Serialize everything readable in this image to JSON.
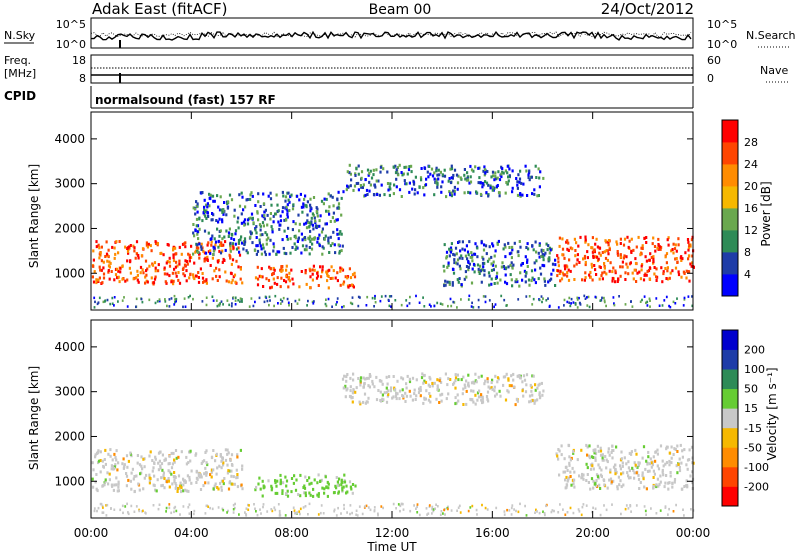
{
  "header": {
    "station": "Adak East (fitACF)",
    "beam": "Beam 00",
    "date": "24/Oct/2012"
  },
  "top_panels": {
    "nsky_label": "N.Sky",
    "nsearch_label": "N.Search",
    "freq_label_1": "Freq.",
    "freq_label_2": "[MHz]",
    "nave_label": "Nave",
    "cpid_label": "CPID",
    "cpid_text": "normalsound (fast) 157 RF",
    "noise_top_left": "10^5",
    "noise_bottom_left": "10^0",
    "noise_top_right": "10^5",
    "noise_bottom_right": "10^0",
    "freq_top": "18",
    "freq_bottom": "8",
    "nave_top": "60",
    "nave_bottom": "0"
  },
  "colorbars": {
    "power": {
      "label": "Power [dB]",
      "ticks": [
        "4",
        "8",
        "12",
        "16",
        "20",
        "24",
        "28"
      ],
      "colors": [
        "#0000ff",
        "#1e3ca8",
        "#2e8b57",
        "#6aa84f",
        "#f5b800",
        "#ff8c00",
        "#ff4500",
        "#ff0000"
      ]
    },
    "velocity": {
      "label": "Velocity [m s⁻¹]",
      "ticks": [
        "-200",
        "-100",
        "-50",
        "-15",
        "15",
        "50",
        "100",
        "200"
      ],
      "colors": [
        "#ff0000",
        "#ff4500",
        "#ff8c00",
        "#f5b800",
        "#c8c8c8",
        "#66cc33",
        "#2e8b57",
        "#1e3ca8",
        "#0000cd"
      ]
    }
  },
  "x_axis": {
    "label": "Time UT",
    "ticks": [
      "00:00",
      "04:00",
      "08:00",
      "12:00",
      "16:00",
      "20:00",
      "00:00"
    ]
  },
  "chart_data": [
    {
      "type": "heatmap",
      "name": "power",
      "ylabel": "Slant Range [km]",
      "xlabel": "",
      "y_ticks": [
        1000,
        2000,
        3000,
        4000
      ],
      "ylim": [
        180,
        4600
      ],
      "xlim": [
        0,
        24
      ],
      "value_label": "Power [dB]",
      "regions": [
        {
          "t0": 0.0,
          "t1": 6.0,
          "r0": 750,
          "r1": 1700,
          "level": "high"
        },
        {
          "t0": 6.5,
          "t1": 10.5,
          "r0": 650,
          "r1": 1150,
          "level": "high"
        },
        {
          "t0": 4.0,
          "t1": 10.0,
          "r0": 1400,
          "r1": 2800,
          "level": "low"
        },
        {
          "t0": 10.0,
          "t1": 18.0,
          "r0": 2700,
          "r1": 3400,
          "level": "low"
        },
        {
          "t0": 14.0,
          "t1": 18.5,
          "r0": 700,
          "r1": 1700,
          "level": "low"
        },
        {
          "t0": 18.5,
          "t1": 24.0,
          "r0": 800,
          "r1": 1800,
          "level": "high"
        }
      ]
    },
    {
      "type": "heatmap",
      "name": "velocity",
      "ylabel": "Slant Range [km]",
      "xlabel": "Time UT",
      "y_ticks": [
        1000,
        2000,
        3000,
        4000
      ],
      "ylim": [
        180,
        4600
      ],
      "xlim": [
        0,
        24
      ],
      "value_label": "Velocity [m s⁻¹]",
      "regions": [
        {
          "t0": 0.0,
          "t1": 6.0,
          "r0": 750,
          "r1": 1700,
          "level": "near-zero"
        },
        {
          "t0": 6.5,
          "t1": 10.5,
          "r0": 650,
          "r1": 1150,
          "level": "positive"
        },
        {
          "t0": 10.0,
          "t1": 18.0,
          "r0": 2700,
          "r1": 3400,
          "level": "near-zero"
        },
        {
          "t0": 18.5,
          "t1": 24.0,
          "r0": 800,
          "r1": 1800,
          "level": "near-zero"
        }
      ]
    }
  ]
}
